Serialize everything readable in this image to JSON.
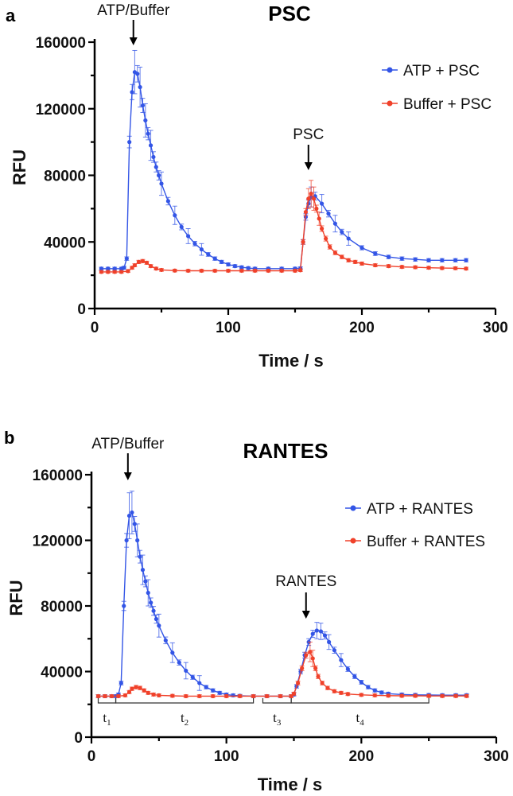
{
  "chart_data": [
    {
      "panel": "a",
      "type": "line",
      "title": "PSC",
      "xlabel": "Time / s",
      "ylabel": "RFU",
      "xlim": [
        0,
        300
      ],
      "ylim": [
        0,
        160000
      ],
      "xticks": [
        0,
        100,
        200,
        300
      ],
      "yticks": [
        0,
        40000,
        80000,
        120000,
        160000
      ],
      "legend_position": "top-right",
      "annotations": [
        {
          "text": "ATP/Buffer",
          "x": 29
        },
        {
          "text": "PSC",
          "x": 160
        }
      ],
      "series": [
        {
          "name": "ATP + PSC",
          "color": "#3355e6",
          "points": [
            [
              5,
              24000
            ],
            [
              10,
              24000
            ],
            [
              15,
              24000
            ],
            [
              20,
              24000
            ],
            [
              22,
              24500
            ],
            [
              24,
              30000
            ],
            [
              26,
              100000
            ],
            [
              28,
              130000
            ],
            [
              30,
              142000
            ],
            [
              32,
              141000
            ],
            [
              34,
              133000
            ],
            [
              36,
              122000
            ],
            [
              38,
              113000
            ],
            [
              40,
              105000
            ],
            [
              42,
              98000
            ],
            [
              44,
              91000
            ],
            [
              46,
              85000
            ],
            [
              48,
              80000
            ],
            [
              50,
              75000
            ],
            [
              55,
              64500
            ],
            [
              60,
              56000
            ],
            [
              65,
              49000
            ],
            [
              70,
              43500
            ],
            [
              75,
              39000
            ],
            [
              80,
              35500
            ],
            [
              85,
              32500
            ],
            [
              90,
              30000
            ],
            [
              95,
              28000
            ],
            [
              100,
              26500
            ],
            [
              105,
              25500
            ],
            [
              110,
              24800
            ],
            [
              115,
              24300
            ],
            [
              120,
              24000
            ],
            [
              130,
              24000
            ],
            [
              140,
              24000
            ],
            [
              150,
              24000
            ],
            [
              154,
              24200
            ],
            [
              156,
              40000
            ],
            [
              158,
              55000
            ],
            [
              160,
              63000
            ],
            [
              162,
              67000
            ],
            [
              165,
              67500
            ],
            [
              170,
              63000
            ],
            [
              175,
              57000
            ],
            [
              180,
              51000
            ],
            [
              185,
              46000
            ],
            [
              190,
              42000
            ],
            [
              200,
              36500
            ],
            [
              210,
              33000
            ],
            [
              220,
              31000
            ],
            [
              230,
              30000
            ],
            [
              240,
              29500
            ],
            [
              250,
              29000
            ],
            [
              260,
              29000
            ],
            [
              270,
              29000
            ],
            [
              278,
              29000
            ]
          ],
          "error": [
            [
              30,
              13000
            ],
            [
              34,
              12000
            ],
            [
              38,
              10000
            ],
            [
              42,
              9000
            ],
            [
              50,
              7000
            ],
            [
              60,
              5500
            ],
            [
              70,
              4500
            ],
            [
              80,
              3500
            ],
            [
              162,
              6000
            ],
            [
              170,
              5500
            ],
            [
              180,
              5000
            ],
            [
              190,
              4000
            ]
          ]
        },
        {
          "name": "Buffer + PSC",
          "color": "#f0412a",
          "points": [
            [
              5,
              22000
            ],
            [
              10,
              22000
            ],
            [
              15,
              22000
            ],
            [
              20,
              22000
            ],
            [
              25,
              22500
            ],
            [
              28,
              24500
            ],
            [
              30,
              26000
            ],
            [
              33,
              28000
            ],
            [
              36,
              28500
            ],
            [
              39,
              27500
            ],
            [
              42,
              25500
            ],
            [
              46,
              24000
            ],
            [
              50,
              23200
            ],
            [
              60,
              22800
            ],
            [
              70,
              22700
            ],
            [
              80,
              22700
            ],
            [
              90,
              22700
            ],
            [
              100,
              22700
            ],
            [
              110,
              22700
            ],
            [
              120,
              22700
            ],
            [
              130,
              22700
            ],
            [
              140,
              22700
            ],
            [
              150,
              22700
            ],
            [
              154,
              23000
            ],
            [
              156,
              40000
            ],
            [
              158,
              58000
            ],
            [
              160,
              66000
            ],
            [
              162,
              69000
            ],
            [
              164,
              66000
            ],
            [
              166,
              60000
            ],
            [
              168,
              54000
            ],
            [
              170,
              48000
            ],
            [
              173,
              42000
            ],
            [
              176,
              37000
            ],
            [
              180,
              33500
            ],
            [
              185,
              31000
            ],
            [
              190,
              29000
            ],
            [
              195,
              28000
            ],
            [
              200,
              27000
            ],
            [
              210,
              26000
            ],
            [
              220,
              25500
            ],
            [
              230,
              25000
            ],
            [
              240,
              24800
            ],
            [
              250,
              24500
            ],
            [
              260,
              24300
            ],
            [
              270,
              24200
            ],
            [
              278,
              24000
            ]
          ],
          "error": [
            [
              160,
              6000
            ],
            [
              162,
              8000
            ],
            [
              164,
              7000
            ],
            [
              168,
              4000
            ]
          ]
        }
      ]
    },
    {
      "panel": "b",
      "type": "line",
      "title": "RANTES",
      "xlabel": "Time / s",
      "ylabel": "RFU",
      "xlim": [
        0,
        300
      ],
      "ylim": [
        0,
        160000
      ],
      "xticks": [
        0,
        100,
        200,
        300
      ],
      "yticks": [
        0,
        40000,
        80000,
        120000,
        160000
      ],
      "legend_position": "top-right",
      "annotations": [
        {
          "text": "ATP/Buffer",
          "x": 27
        },
        {
          "text": "RANTES",
          "x": 159
        }
      ],
      "intervals": [
        {
          "label": "t",
          "sub": "1",
          "start": 5,
          "end": 18
        },
        {
          "label": "t",
          "sub": "2",
          "start": 18,
          "end": 120
        },
        {
          "label": "t",
          "sub": "3",
          "start": 127,
          "end": 148
        },
        {
          "label": "t",
          "sub": "4",
          "start": 148,
          "end": 250
        }
      ],
      "series": [
        {
          "name": "ATP + RANTES",
          "color": "#3355e6",
          "points": [
            [
              5,
              25000
            ],
            [
              10,
              25000
            ],
            [
              15,
              25000
            ],
            [
              18,
              25000
            ],
            [
              20,
              26000
            ],
            [
              22,
              33000
            ],
            [
              24,
              80000
            ],
            [
              26,
              120000
            ],
            [
              28,
              135000
            ],
            [
              30,
              137000
            ],
            [
              32,
              130000
            ],
            [
              34,
              120000
            ],
            [
              36,
              110000
            ],
            [
              38,
              102000
            ],
            [
              40,
              95000
            ],
            [
              42,
              88000
            ],
            [
              44,
              82000
            ],
            [
              46,
              77000
            ],
            [
              48,
              72000
            ],
            [
              50,
              68000
            ],
            [
              55,
              59000
            ],
            [
              60,
              51500
            ],
            [
              65,
              45500
            ],
            [
              70,
              40500
            ],
            [
              75,
              36500
            ],
            [
              80,
              33000
            ],
            [
              85,
              30500
            ],
            [
              90,
              28500
            ],
            [
              95,
              27000
            ],
            [
              100,
              26000
            ],
            [
              105,
              25500
            ],
            [
              110,
              25200
            ],
            [
              120,
              25000
            ],
            [
              130,
              25000
            ],
            [
              140,
              25000
            ],
            [
              148,
              25000
            ],
            [
              150,
              26000
            ],
            [
              152,
              31000
            ],
            [
              155,
              40000
            ],
            [
              158,
              50000
            ],
            [
              161,
              58000
            ],
            [
              164,
              63000
            ],
            [
              167,
              65000
            ],
            [
              170,
              64500
            ],
            [
              173,
              62000
            ],
            [
              176,
              58000
            ],
            [
              180,
              53000
            ],
            [
              185,
              47000
            ],
            [
              190,
              41500
            ],
            [
              195,
              37000
            ],
            [
              200,
              33500
            ],
            [
              205,
              30500
            ],
            [
              210,
              28500
            ],
            [
              215,
              27200
            ],
            [
              220,
              26500
            ],
            [
              230,
              26000
            ],
            [
              240,
              25800
            ],
            [
              250,
              25700
            ],
            [
              260,
              25600
            ],
            [
              270,
              25600
            ],
            [
              278,
              25600
            ]
          ],
          "error": [
            [
              28,
              14000
            ],
            [
              30,
              13000
            ],
            [
              34,
              10000
            ],
            [
              38,
              9000
            ],
            [
              42,
              8000
            ],
            [
              50,
              7000
            ],
            [
              60,
              6000
            ],
            [
              70,
              5000
            ],
            [
              80,
              4500
            ],
            [
              167,
              5000
            ],
            [
              170,
              5000
            ],
            [
              176,
              4500
            ],
            [
              185,
              4000
            ]
          ]
        },
        {
          "name": "Buffer + RANTES",
          "color": "#f0412a",
          "points": [
            [
              5,
              25000
            ],
            [
              10,
              25000
            ],
            [
              15,
              25000
            ],
            [
              20,
              25000
            ],
            [
              25,
              25500
            ],
            [
              28,
              27500
            ],
            [
              30,
              29500
            ],
            [
              33,
              30500
            ],
            [
              36,
              30000
            ],
            [
              39,
              28500
            ],
            [
              42,
              27000
            ],
            [
              46,
              26000
            ],
            [
              50,
              25500
            ],
            [
              60,
              25200
            ],
            [
              70,
              25000
            ],
            [
              80,
              25000
            ],
            [
              90,
              25000
            ],
            [
              100,
              25000
            ],
            [
              110,
              25000
            ],
            [
              120,
              25000
            ],
            [
              130,
              25000
            ],
            [
              140,
              25000
            ],
            [
              148,
              25000
            ],
            [
              150,
              26500
            ],
            [
              153,
              33000
            ],
            [
              156,
              42000
            ],
            [
              159,
              50000
            ],
            [
              162,
              52000
            ],
            [
              164,
              48000
            ],
            [
              166,
              42000
            ],
            [
              168,
              37000
            ],
            [
              171,
              33000
            ],
            [
              175,
              30000
            ],
            [
              180,
              28000
            ],
            [
              185,
              27000
            ],
            [
              190,
              26300
            ],
            [
              200,
              25800
            ],
            [
              210,
              25500
            ],
            [
              220,
              25300
            ],
            [
              230,
              25200
            ],
            [
              240,
              25200
            ],
            [
              250,
              25100
            ],
            [
              260,
              25100
            ],
            [
              270,
              25100
            ],
            [
              278,
              25100
            ]
          ],
          "error": [
            [
              160,
              5000
            ],
            [
              162,
              6000
            ],
            [
              164,
              5000
            ]
          ]
        }
      ]
    }
  ]
}
